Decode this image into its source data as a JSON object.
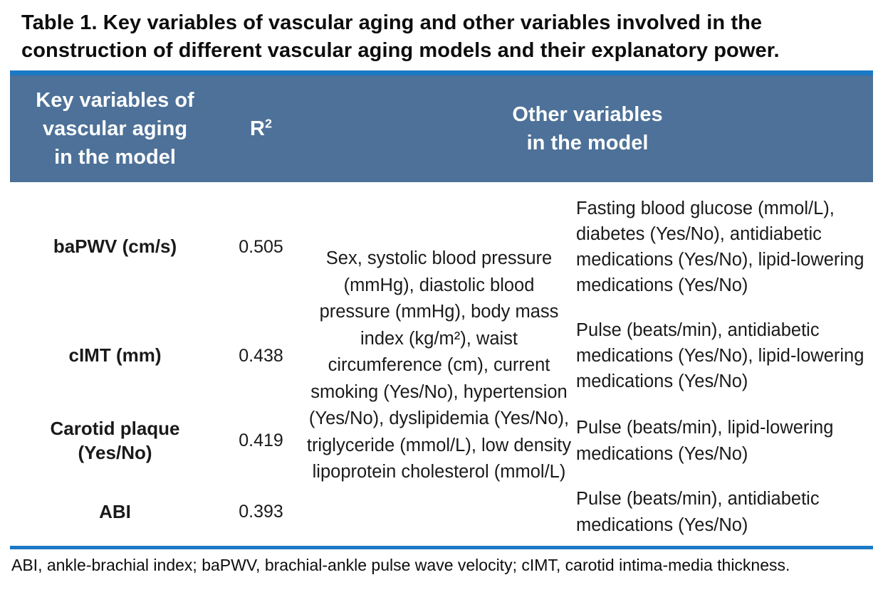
{
  "title": "Table 1. Key variables of vascular aging and other variables involved in the construction of different vascular aging models and their explanatory power.",
  "colors": {
    "header_fill": "#4d7198",
    "accent_blue": "#1c79c5",
    "header_text": "#ffffff",
    "body_text": "#1a1a1a"
  },
  "table": {
    "header": {
      "key_variables": "Key variables of\nvascular aging\nin the model",
      "r2_base": "R",
      "r2_sup": "2",
      "other_variables": "Other variables\nin the model"
    },
    "shared_variables": "Sex, systolic blood pressure (mmHg), diastolic blood pressure (mmHg), body mass index (kg/m²), waist circumference (cm), current smoking (Yes/No), hypertension (Yes/No), dyslipidemia (Yes/No), triglyceride (mmol/L), low density lipoprotein cholesterol (mmol/L)",
    "rows": [
      {
        "key_variable": "baPWV (cm/s)",
        "r2": "0.505",
        "other_variables": "Fasting blood glucose (mmol/L), diabetes (Yes/No), antidiabetic medications (Yes/No), lipid-lowering medications (Yes/No)"
      },
      {
        "key_variable": "cIMT (mm)",
        "r2": "0.438",
        "other_variables": "Pulse (beats/min), antidiabetic medications (Yes/No), lipid-lowering medications (Yes/No)"
      },
      {
        "key_variable": "Carotid plaque (Yes/No)",
        "r2": "0.419",
        "other_variables": "Pulse (beats/min), lipid-lowering medications (Yes/No)"
      },
      {
        "key_variable": "ABI",
        "r2": "0.393",
        "other_variables": "Pulse (beats/min), antidiabetic medications (Yes/No)"
      }
    ],
    "footnote": "ABI, ankle-brachial index; baPWV, brachial-ankle pulse wave velocity; cIMT, carotid intima-media thickness."
  }
}
